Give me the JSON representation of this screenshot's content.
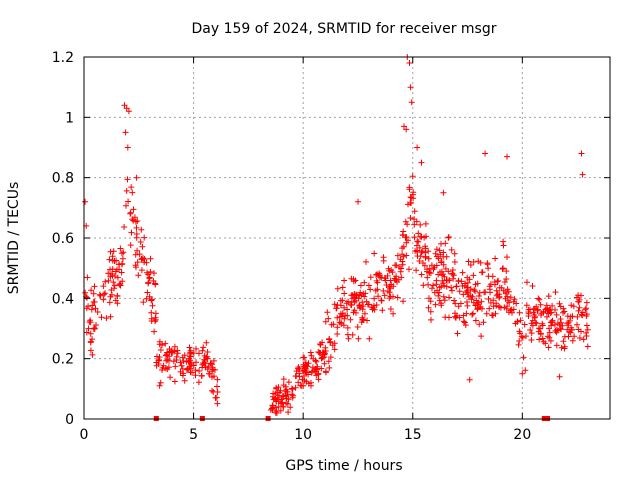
{
  "chart_data": {
    "type": "scatter",
    "title": "Day 159 of 2024, SRMTID for receiver msgr",
    "xlabel": "GPS time / hours",
    "ylabel": "SRMTID / TECUs",
    "xlim": [
      0,
      24
    ],
    "ylim": [
      0,
      1.2
    ],
    "xticks": [
      0,
      5,
      10,
      15,
      20
    ],
    "yticks": [
      0,
      0.2,
      0.4,
      0.6,
      0.8,
      1,
      1.2
    ],
    "xtick_labels": [
      "0",
      "5",
      "10",
      "15",
      "20"
    ],
    "ytick_labels": [
      "0",
      "0.2",
      "0.4",
      "0.6",
      "0.8",
      "1",
      "1.2"
    ],
    "grid": true,
    "marker": "+",
    "color": "#ff0000",
    "series": [
      {
        "name": "SRMTID",
        "segments": [
          {
            "x_start": 0.0,
            "x_end": 3.3,
            "profile": [
              [
                0.0,
                0.4
              ],
              [
                0.3,
                0.3
              ],
              [
                0.7,
                0.42
              ],
              [
                1.2,
                0.45
              ],
              [
                1.7,
                0.5
              ],
              [
                2.0,
                0.75
              ],
              [
                2.3,
                0.6
              ],
              [
                2.8,
                0.5
              ],
              [
                3.3,
                0.35
              ]
            ],
            "spread": 0.1,
            "count": 150
          },
          {
            "x_start": 3.3,
            "x_end": 6.1,
            "profile": [
              [
                3.3,
                0.22
              ],
              [
                4.0,
                0.2
              ],
              [
                5.0,
                0.17
              ],
              [
                5.5,
                0.19
              ],
              [
                6.1,
                0.12
              ]
            ],
            "spread": 0.06,
            "count": 120
          },
          {
            "x_start": 8.5,
            "x_end": 11.0,
            "profile": [
              [
                8.5,
                0.07
              ],
              [
                9.0,
                0.06
              ],
              [
                9.5,
                0.1
              ],
              [
                10.0,
                0.15
              ],
              [
                10.5,
                0.17
              ],
              [
                11.0,
                0.22
              ]
            ],
            "spread": 0.05,
            "count": 130
          },
          {
            "x_start": 11.0,
            "x_end": 14.5,
            "profile": [
              [
                11.0,
                0.25
              ],
              [
                11.5,
                0.32
              ],
              [
                12.0,
                0.38
              ],
              [
                13.0,
                0.4
              ],
              [
                13.5,
                0.45
              ],
              [
                14.0,
                0.45
              ],
              [
                14.5,
                0.5
              ]
            ],
            "spread": 0.09,
            "count": 170
          },
          {
            "x_start": 14.5,
            "x_end": 17.0,
            "profile": [
              [
                14.5,
                0.5
              ],
              [
                14.9,
                0.7
              ],
              [
                15.3,
                0.55
              ],
              [
                16.0,
                0.45
              ],
              [
                16.5,
                0.5
              ],
              [
                17.0,
                0.4
              ]
            ],
            "spread": 0.12,
            "count": 150
          },
          {
            "x_start": 17.0,
            "x_end": 20.2,
            "profile": [
              [
                17.0,
                0.38
              ],
              [
                17.5,
                0.42
              ],
              [
                18.5,
                0.4
              ],
              [
                19.3,
                0.45
              ],
              [
                20.0,
                0.25
              ]
            ],
            "spread": 0.1,
            "count": 150
          },
          {
            "x_start": 20.2,
            "x_end": 23.0,
            "profile": [
              [
                20.2,
                0.38
              ],
              [
                20.8,
                0.32
              ],
              [
                21.5,
                0.33
              ],
              [
                22.0,
                0.3
              ],
              [
                22.5,
                0.35
              ],
              [
                23.0,
                0.3
              ]
            ],
            "spread": 0.08,
            "count": 140
          }
        ],
        "extremes": [
          {
            "x": 0.05,
            "y": 0.72
          },
          {
            "x": 0.1,
            "y": 0.64
          },
          {
            "x": 1.85,
            "y": 1.04
          },
          {
            "x": 1.95,
            "y": 1.03
          },
          {
            "x": 2.05,
            "y": 1.02
          },
          {
            "x": 1.9,
            "y": 0.95
          },
          {
            "x": 2.0,
            "y": 0.9
          },
          {
            "x": 2.4,
            "y": 0.8
          },
          {
            "x": 14.75,
            "y": 1.2
          },
          {
            "x": 14.85,
            "y": 1.18
          },
          {
            "x": 14.9,
            "y": 1.1
          },
          {
            "x": 14.95,
            "y": 1.05
          },
          {
            "x": 14.6,
            "y": 0.97
          },
          {
            "x": 14.7,
            "y": 0.96
          },
          {
            "x": 15.2,
            "y": 0.9
          },
          {
            "x": 15.4,
            "y": 0.85
          },
          {
            "x": 18.3,
            "y": 0.88
          },
          {
            "x": 19.3,
            "y": 0.87
          },
          {
            "x": 22.7,
            "y": 0.88
          },
          {
            "x": 22.75,
            "y": 0.81
          },
          {
            "x": 16.4,
            "y": 0.75
          },
          {
            "x": 12.5,
            "y": 0.72
          }
        ],
        "lows": [
          {
            "x": 3.45,
            "y": 0.11
          },
          {
            "x": 3.5,
            "y": 0.12
          },
          {
            "x": 6.0,
            "y": 0.07
          },
          {
            "x": 5.9,
            "y": 0.09
          },
          {
            "x": 8.6,
            "y": 0.03
          },
          {
            "x": 8.8,
            "y": 0.02
          },
          {
            "x": 9.1,
            "y": 0.04
          },
          {
            "x": 9.3,
            "y": 0.05
          },
          {
            "x": 20.0,
            "y": 0.15
          },
          {
            "x": 21.7,
            "y": 0.14
          },
          {
            "x": 17.6,
            "y": 0.13
          }
        ]
      }
    ],
    "baseline_markers": [
      3.3,
      5.4,
      8.4,
      21.0,
      21.15
    ]
  }
}
